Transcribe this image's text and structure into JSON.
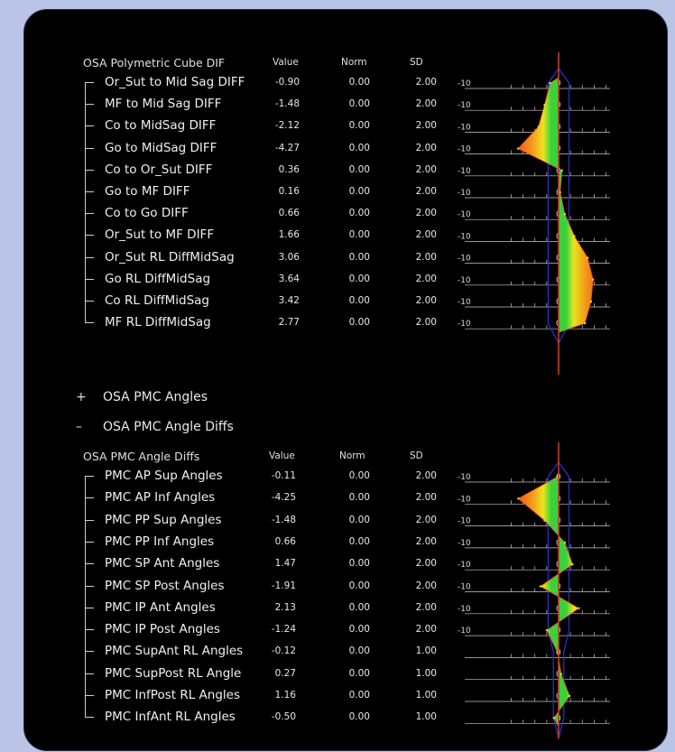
{
  "section1": {
    "title": "OSA Polymetric Cube DIF",
    "columns": {
      "value": "Value",
      "norm": "Norm",
      "sd": "SD"
    },
    "rows": [
      {
        "name": "Or_Sut to Mid Sag DIFF",
        "value": "-0.90",
        "norm": "0.00",
        "sd": "2.00"
      },
      {
        "name": "MF to Mid Sag DIFF",
        "value": "-1.48",
        "norm": "0.00",
        "sd": "2.00"
      },
      {
        "name": "Co to MidSag DIFF",
        "value": "-2.12",
        "norm": "0.00",
        "sd": "2.00"
      },
      {
        "name": "Go to MidSag DIFF",
        "value": "-4.27",
        "norm": "0.00",
        "sd": "2.00"
      },
      {
        "name": "Co to Or_Sut DIFF",
        "value": "0.36",
        "norm": "0.00",
        "sd": "2.00"
      },
      {
        "name": "Go to MF DIFF",
        "value": "0.16",
        "norm": "0.00",
        "sd": "2.00"
      },
      {
        "name": "Co to Go DIFF",
        "value": "0.66",
        "norm": "0.00",
        "sd": "2.00"
      },
      {
        "name": "Or_Sut to MF DIFF",
        "value": "1.66",
        "norm": "0.00",
        "sd": "2.00"
      },
      {
        "name": "Or_Sut RL DiffMidSag",
        "value": "3.06",
        "norm": "0.00",
        "sd": "2.00"
      },
      {
        "name": "Go RL DiffMidSag",
        "value": "3.64",
        "norm": "0.00",
        "sd": "2.00"
      },
      {
        "name": "Co RL DiffMidSag",
        "value": "3.42",
        "norm": "0.00",
        "sd": "2.00"
      },
      {
        "name": "MF RL DiffMidSag",
        "value": "2.77",
        "norm": "0.00",
        "sd": "2.00"
      }
    ]
  },
  "groups": [
    {
      "symbol": "+",
      "label": "OSA PMC Angles"
    },
    {
      "symbol": "–",
      "label": "OSA PMC Angle Diffs"
    }
  ],
  "section2": {
    "title": "OSA PMC Angle Diffs",
    "columns": {
      "value": "Value",
      "norm": "Norm",
      "sd": "SD"
    },
    "rows": [
      {
        "name": "PMC AP Sup Angles",
        "value": "-0.11",
        "norm": "0.00",
        "sd": "2.00"
      },
      {
        "name": "PMC AP Inf Angles",
        "value": "-4.25",
        "norm": "0.00",
        "sd": "2.00"
      },
      {
        "name": "PMC PP Sup Angles",
        "value": "-1.48",
        "norm": "0.00",
        "sd": "2.00"
      },
      {
        "name": "PMC PP Inf Angles",
        "value": "0.66",
        "norm": "0.00",
        "sd": "2.00"
      },
      {
        "name": "PMC SP Ant Angles",
        "value": "1.47",
        "norm": "0.00",
        "sd": "2.00"
      },
      {
        "name": "PMC SP Post Angles",
        "value": "-1.91",
        "norm": "0.00",
        "sd": "2.00"
      },
      {
        "name": "PMC IP Ant Angles",
        "value": "2.13",
        "norm": "0.00",
        "sd": "2.00"
      },
      {
        "name": "PMC IP Post Angles",
        "value": "-1.24",
        "norm": "0.00",
        "sd": "2.00"
      },
      {
        "name": "PMC SupAnt RL Angles",
        "value": "-0.12",
        "norm": "0.00",
        "sd": "1.00"
      },
      {
        "name": "PMC SupPost RL Angle",
        "value": "0.27",
        "norm": "0.00",
        "sd": "1.00"
      },
      {
        "name": "PMC InfPost RL Angles",
        "value": "1.16",
        "norm": "0.00",
        "sd": "1.00"
      },
      {
        "name": "PMC InfAnt RL Angles",
        "value": "-0.50",
        "norm": "0.00",
        "sd": "1.00"
      }
    ]
  },
  "chart_data": [
    {
      "type": "area",
      "title": "",
      "tick_labels": [
        "-10",
        "0"
      ],
      "x": [
        "Or_Sut to Mid Sag DIFF",
        "MF to Mid Sag DIFF",
        "Co to MidSag DIFF",
        "Go to MidSag DIFF",
        "Co to Or_Sut DIFF",
        "Go to MF DIFF",
        "Co to Go DIFF",
        "Or_Sut to MF DIFF",
        "Or_Sut RL DiffMidSag",
        "Go RL DiffMidSag",
        "Co RL DiffMidSag",
        "MF RL DiffMidSag"
      ],
      "values": [
        -0.9,
        -1.48,
        -2.12,
        -4.27,
        0.36,
        0.16,
        0.66,
        1.66,
        3.06,
        3.64,
        3.42,
        2.77
      ],
      "norm": [
        0,
        0,
        0,
        0,
        0,
        0,
        0,
        0,
        0,
        0,
        0,
        0
      ],
      "sd": [
        2,
        2,
        2,
        2,
        2,
        2,
        2,
        2,
        2,
        2,
        2,
        2
      ],
      "colors": {
        "fill_near": "#39d23a",
        "fill_mid": "#e8e51c",
        "fill_far": "#f03a10",
        "sd_outline": "#2a2fc8",
        "axis": "#c8c8c8",
        "norm_line": "#c0402a"
      }
    },
    {
      "type": "area",
      "title": "",
      "tick_labels": [
        "-10",
        "0"
      ],
      "x": [
        "PMC AP Sup Angles",
        "PMC AP Inf Angles",
        "PMC PP Sup Angles",
        "PMC PP Inf Angles",
        "PMC SP Ant Angles",
        "PMC SP Post Angles",
        "PMC IP Ant Angles",
        "PMC IP Post Angles",
        "PMC SupAnt RL Angles",
        "PMC SupPost RL Angle",
        "PMC InfPost RL Angles",
        "PMC InfAnt RL Angles"
      ],
      "values": [
        -0.11,
        -4.25,
        -1.48,
        0.66,
        1.47,
        -1.91,
        2.13,
        -1.24,
        -0.12,
        0.27,
        1.16,
        -0.5
      ],
      "norm": [
        0,
        0,
        0,
        0,
        0,
        0,
        0,
        0,
        0,
        0,
        0,
        0
      ],
      "sd": [
        2,
        2,
        2,
        2,
        2,
        2,
        2,
        2,
        1,
        1,
        1,
        1
      ],
      "colors": {
        "fill_near": "#39d23a",
        "fill_mid": "#e8e51c",
        "fill_far": "#f03a10",
        "sd_outline": "#2a2fc8",
        "axis": "#c8c8c8",
        "norm_line": "#c0402a"
      }
    }
  ]
}
